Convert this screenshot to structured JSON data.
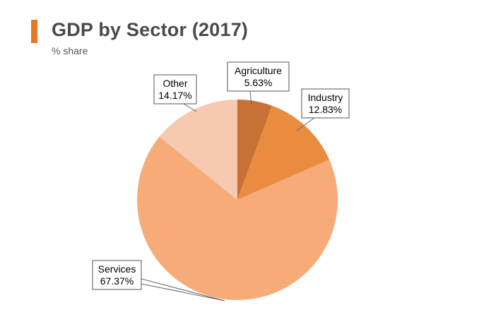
{
  "header": {
    "title": "GDP by Sector (2017)",
    "subtitle": "% share",
    "accent_color": "#e87722"
  },
  "chart_data": {
    "type": "pie",
    "title": "GDP by Sector (2017)",
    "subtitle": "% share",
    "start_angle_deg": 0,
    "direction": "clockwise",
    "slices": [
      {
        "name": "Agriculture",
        "label": "5.63%",
        "value": 5.63,
        "color": "#c87137"
      },
      {
        "name": "Industry",
        "label": "12.83%",
        "value": 12.83,
        "color": "#e98c40"
      },
      {
        "name": "Services",
        "label": "67.37%",
        "value": 67.37,
        "color": "#f6ab79"
      },
      {
        "name": "Other",
        "label": "14.17%",
        "value": 14.17,
        "color": "#f8c9b1"
      }
    ]
  }
}
